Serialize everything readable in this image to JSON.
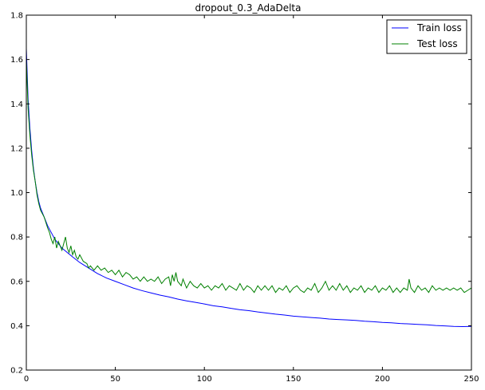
{
  "chart_data": {
    "type": "line",
    "title": "dropout_0.3_AdaDelta",
    "xlabel": "",
    "ylabel": "",
    "xlim": [
      0,
      250
    ],
    "ylim": [
      0.2,
      1.8
    ],
    "x_ticks": [
      0,
      50,
      100,
      150,
      200,
      250
    ],
    "y_ticks": [
      0.2,
      0.4,
      0.6,
      0.8,
      1.0,
      1.2,
      1.4,
      1.6,
      1.8
    ],
    "grid": false,
    "legend_position": "top-right",
    "series": [
      {
        "name": "Train loss",
        "color": "#0000ff",
        "points": [
          [
            0,
            1.65
          ],
          [
            1,
            1.42
          ],
          [
            2,
            1.29
          ],
          [
            3,
            1.19
          ],
          [
            4,
            1.11
          ],
          [
            5,
            1.05
          ],
          [
            6,
            1.0
          ],
          [
            7,
            0.96
          ],
          [
            8,
            0.93
          ],
          [
            10,
            0.89
          ],
          [
            12,
            0.85
          ],
          [
            14,
            0.82
          ],
          [
            16,
            0.79
          ],
          [
            18,
            0.77
          ],
          [
            20,
            0.75
          ],
          [
            23,
            0.73
          ],
          [
            26,
            0.71
          ],
          [
            30,
            0.685
          ],
          [
            35,
            0.66
          ],
          [
            40,
            0.635
          ],
          [
            45,
            0.615
          ],
          [
            50,
            0.6
          ],
          [
            55,
            0.585
          ],
          [
            60,
            0.57
          ],
          [
            65,
            0.558
          ],
          [
            70,
            0.548
          ],
          [
            75,
            0.538
          ],
          [
            80,
            0.53
          ],
          [
            85,
            0.52
          ],
          [
            90,
            0.512
          ],
          [
            95,
            0.505
          ],
          [
            100,
            0.498
          ],
          [
            105,
            0.49
          ],
          [
            110,
            0.485
          ],
          [
            115,
            0.478
          ],
          [
            120,
            0.472
          ],
          [
            125,
            0.468
          ],
          [
            130,
            0.462
          ],
          [
            135,
            0.457
          ],
          [
            140,
            0.452
          ],
          [
            145,
            0.448
          ],
          [
            150,
            0.443
          ],
          [
            155,
            0.44
          ],
          [
            160,
            0.437
          ],
          [
            165,
            0.434
          ],
          [
            170,
            0.43
          ],
          [
            175,
            0.428
          ],
          [
            180,
            0.426
          ],
          [
            185,
            0.424
          ],
          [
            190,
            0.42
          ],
          [
            195,
            0.418
          ],
          [
            200,
            0.415
          ],
          [
            205,
            0.413
          ],
          [
            210,
            0.41
          ],
          [
            215,
            0.408
          ],
          [
            220,
            0.406
          ],
          [
            225,
            0.404
          ],
          [
            230,
            0.401
          ],
          [
            235,
            0.399
          ],
          [
            240,
            0.397
          ],
          [
            245,
            0.396
          ],
          [
            250,
            0.397
          ]
        ]
      },
      {
        "name": "Test loss",
        "color": "#008000",
        "points": [
          [
            0,
            1.6
          ],
          [
            1,
            1.38
          ],
          [
            2,
            1.26
          ],
          [
            3,
            1.17
          ],
          [
            4,
            1.1
          ],
          [
            5,
            1.05
          ],
          [
            6,
            0.99
          ],
          [
            7,
            0.95
          ],
          [
            8,
            0.92
          ],
          [
            10,
            0.89
          ],
          [
            12,
            0.84
          ],
          [
            13,
            0.82
          ],
          [
            14,
            0.79
          ],
          [
            15,
            0.77
          ],
          [
            16,
            0.8
          ],
          [
            17,
            0.75
          ],
          [
            18,
            0.78
          ],
          [
            19,
            0.76
          ],
          [
            20,
            0.74
          ],
          [
            21,
            0.77
          ],
          [
            22,
            0.8
          ],
          [
            23,
            0.75
          ],
          [
            24,
            0.73
          ],
          [
            25,
            0.76
          ],
          [
            26,
            0.72
          ],
          [
            27,
            0.74
          ],
          [
            28,
            0.71
          ],
          [
            29,
            0.7
          ],
          [
            30,
            0.72
          ],
          [
            32,
            0.69
          ],
          [
            34,
            0.68
          ],
          [
            35,
            0.66
          ],
          [
            36,
            0.67
          ],
          [
            38,
            0.65
          ],
          [
            40,
            0.67
          ],
          [
            42,
            0.65
          ],
          [
            44,
            0.66
          ],
          [
            46,
            0.64
          ],
          [
            48,
            0.65
          ],
          [
            50,
            0.63
          ],
          [
            52,
            0.65
          ],
          [
            54,
            0.62
          ],
          [
            56,
            0.64
          ],
          [
            58,
            0.63
          ],
          [
            60,
            0.61
          ],
          [
            62,
            0.62
          ],
          [
            64,
            0.6
          ],
          [
            66,
            0.62
          ],
          [
            68,
            0.6
          ],
          [
            70,
            0.61
          ],
          [
            72,
            0.6
          ],
          [
            74,
            0.62
          ],
          [
            76,
            0.59
          ],
          [
            78,
            0.61
          ],
          [
            80,
            0.62
          ],
          [
            81,
            0.58
          ],
          [
            82,
            0.63
          ],
          [
            83,
            0.6
          ],
          [
            84,
            0.64
          ],
          [
            85,
            0.6
          ],
          [
            87,
            0.58
          ],
          [
            88,
            0.61
          ],
          [
            90,
            0.57
          ],
          [
            92,
            0.6
          ],
          [
            94,
            0.58
          ],
          [
            96,
            0.57
          ],
          [
            98,
            0.59
          ],
          [
            100,
            0.57
          ],
          [
            102,
            0.58
          ],
          [
            104,
            0.56
          ],
          [
            106,
            0.58
          ],
          [
            108,
            0.57
          ],
          [
            110,
            0.59
          ],
          [
            112,
            0.56
          ],
          [
            114,
            0.58
          ],
          [
            116,
            0.57
          ],
          [
            118,
            0.56
          ],
          [
            120,
            0.59
          ],
          [
            122,
            0.56
          ],
          [
            124,
            0.58
          ],
          [
            126,
            0.57
          ],
          [
            128,
            0.55
          ],
          [
            130,
            0.58
          ],
          [
            132,
            0.56
          ],
          [
            134,
            0.58
          ],
          [
            136,
            0.56
          ],
          [
            138,
            0.58
          ],
          [
            140,
            0.55
          ],
          [
            142,
            0.57
          ],
          [
            144,
            0.56
          ],
          [
            146,
            0.58
          ],
          [
            148,
            0.55
          ],
          [
            150,
            0.57
          ],
          [
            152,
            0.58
          ],
          [
            154,
            0.56
          ],
          [
            156,
            0.55
          ],
          [
            158,
            0.57
          ],
          [
            160,
            0.56
          ],
          [
            162,
            0.59
          ],
          [
            164,
            0.55
          ],
          [
            166,
            0.57
          ],
          [
            168,
            0.6
          ],
          [
            170,
            0.56
          ],
          [
            172,
            0.58
          ],
          [
            174,
            0.56
          ],
          [
            176,
            0.59
          ],
          [
            178,
            0.56
          ],
          [
            180,
            0.58
          ],
          [
            182,
            0.55
          ],
          [
            184,
            0.57
          ],
          [
            186,
            0.56
          ],
          [
            188,
            0.58
          ],
          [
            190,
            0.55
          ],
          [
            192,
            0.57
          ],
          [
            194,
            0.56
          ],
          [
            196,
            0.58
          ],
          [
            198,
            0.55
          ],
          [
            200,
            0.57
          ],
          [
            202,
            0.56
          ],
          [
            204,
            0.58
          ],
          [
            206,
            0.55
          ],
          [
            208,
            0.57
          ],
          [
            210,
            0.55
          ],
          [
            212,
            0.57
          ],
          [
            214,
            0.56
          ],
          [
            215,
            0.61
          ],
          [
            216,
            0.57
          ],
          [
            218,
            0.55
          ],
          [
            220,
            0.58
          ],
          [
            222,
            0.56
          ],
          [
            224,
            0.57
          ],
          [
            226,
            0.55
          ],
          [
            228,
            0.58
          ],
          [
            230,
            0.56
          ],
          [
            232,
            0.57
          ],
          [
            234,
            0.56
          ],
          [
            236,
            0.57
          ],
          [
            238,
            0.56
          ],
          [
            240,
            0.57
          ],
          [
            242,
            0.56
          ],
          [
            244,
            0.57
          ],
          [
            246,
            0.55
          ],
          [
            248,
            0.56
          ],
          [
            250,
            0.57
          ]
        ]
      }
    ]
  }
}
